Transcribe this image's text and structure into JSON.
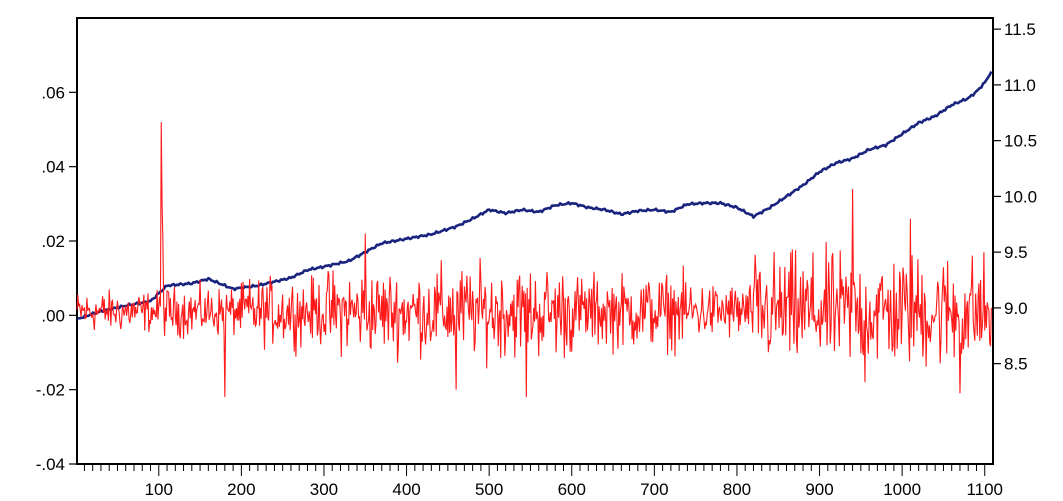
{
  "chart_data": {
    "type": "line",
    "title": "",
    "xlabel": "",
    "ylabel_left": "",
    "ylabel_right": "",
    "grid": false,
    "legend": "none",
    "x_range": [
      1,
      1110
    ],
    "x_ticks": [
      100,
      200,
      300,
      400,
      500,
      600,
      700,
      800,
      900,
      1000,
      1100
    ],
    "x_tick_labels": [
      "100",
      "200",
      "300",
      "400",
      "500",
      "600",
      "700",
      "800",
      "900",
      "1000",
      "1100"
    ],
    "left_axis": {
      "range": [
        -0.04,
        0.08
      ],
      "ticks": [
        -0.04,
        -0.02,
        0.0,
        0.02,
        0.04,
        0.06
      ],
      "tick_labels": [
        "-.04",
        "-.02",
        ".00",
        ".02",
        ".04",
        ".06"
      ]
    },
    "right_axis": {
      "range": [
        7.6,
        11.6
      ],
      "ticks": [
        8.5,
        9.0,
        9.5,
        10.0,
        10.5,
        11.0,
        11.5
      ],
      "tick_labels": [
        "8.5",
        "9.0",
        "9.5",
        "10.0",
        "10.5",
        "11.0",
        "11.5"
      ]
    },
    "series": [
      {
        "axis": "right",
        "color": "#1a237e",
        "points": [
          [
            1,
            8.9
          ],
          [
            30,
            8.97
          ],
          [
            60,
            9.02
          ],
          [
            90,
            9.06
          ],
          [
            110,
            9.2
          ],
          [
            140,
            9.22
          ],
          [
            160,
            9.26
          ],
          [
            190,
            9.17
          ],
          [
            220,
            9.2
          ],
          [
            260,
            9.27
          ],
          [
            280,
            9.34
          ],
          [
            300,
            9.37
          ],
          [
            330,
            9.42
          ],
          [
            350,
            9.5
          ],
          [
            370,
            9.58
          ],
          [
            400,
            9.62
          ],
          [
            430,
            9.66
          ],
          [
            460,
            9.73
          ],
          [
            480,
            9.8
          ],
          [
            500,
            9.88
          ],
          [
            520,
            9.85
          ],
          [
            540,
            9.88
          ],
          [
            560,
            9.86
          ],
          [
            580,
            9.92
          ],
          [
            600,
            9.94
          ],
          [
            620,
            9.9
          ],
          [
            640,
            9.88
          ],
          [
            660,
            9.84
          ],
          [
            680,
            9.87
          ],
          [
            700,
            9.88
          ],
          [
            720,
            9.86
          ],
          [
            740,
            9.93
          ],
          [
            760,
            9.94
          ],
          [
            780,
            9.94
          ],
          [
            800,
            9.9
          ],
          [
            820,
            9.82
          ],
          [
            840,
            9.9
          ],
          [
            860,
            10.0
          ],
          [
            880,
            10.1
          ],
          [
            900,
            10.22
          ],
          [
            920,
            10.3
          ],
          [
            940,
            10.34
          ],
          [
            960,
            10.42
          ],
          [
            980,
            10.46
          ],
          [
            1000,
            10.56
          ],
          [
            1020,
            10.66
          ],
          [
            1040,
            10.72
          ],
          [
            1060,
            10.82
          ],
          [
            1080,
            10.88
          ],
          [
            1090,
            10.94
          ],
          [
            1100,
            11.02
          ],
          [
            1108,
            11.12
          ]
        ]
      },
      {
        "axis": "left",
        "color": "#ff1a1a",
        "generated_noise": true,
        "noise_bands": [
          {
            "from": 1,
            "to": 100,
            "amplitude": 0.005
          },
          {
            "from": 100,
            "to": 200,
            "amplitude": 0.006
          },
          {
            "from": 200,
            "to": 300,
            "amplitude": 0.008
          },
          {
            "from": 300,
            "to": 430,
            "amplitude": 0.01
          },
          {
            "from": 430,
            "to": 600,
            "amplitude": 0.011
          },
          {
            "from": 600,
            "to": 750,
            "amplitude": 0.009
          },
          {
            "from": 750,
            "to": 820,
            "amplitude": 0.007
          },
          {
            "from": 820,
            "to": 1110,
            "amplitude": 0.014
          }
        ],
        "spikes": [
          [
            103,
            0.052
          ],
          [
            104,
            0.03
          ],
          [
            105,
            0.02
          ],
          [
            180,
            -0.022
          ],
          [
            350,
            0.022
          ],
          [
            460,
            -0.02
          ],
          [
            545,
            -0.022
          ],
          [
            940,
            0.034
          ],
          [
            955,
            -0.018
          ],
          [
            1010,
            0.026
          ],
          [
            1070,
            -0.021
          ]
        ]
      }
    ]
  }
}
